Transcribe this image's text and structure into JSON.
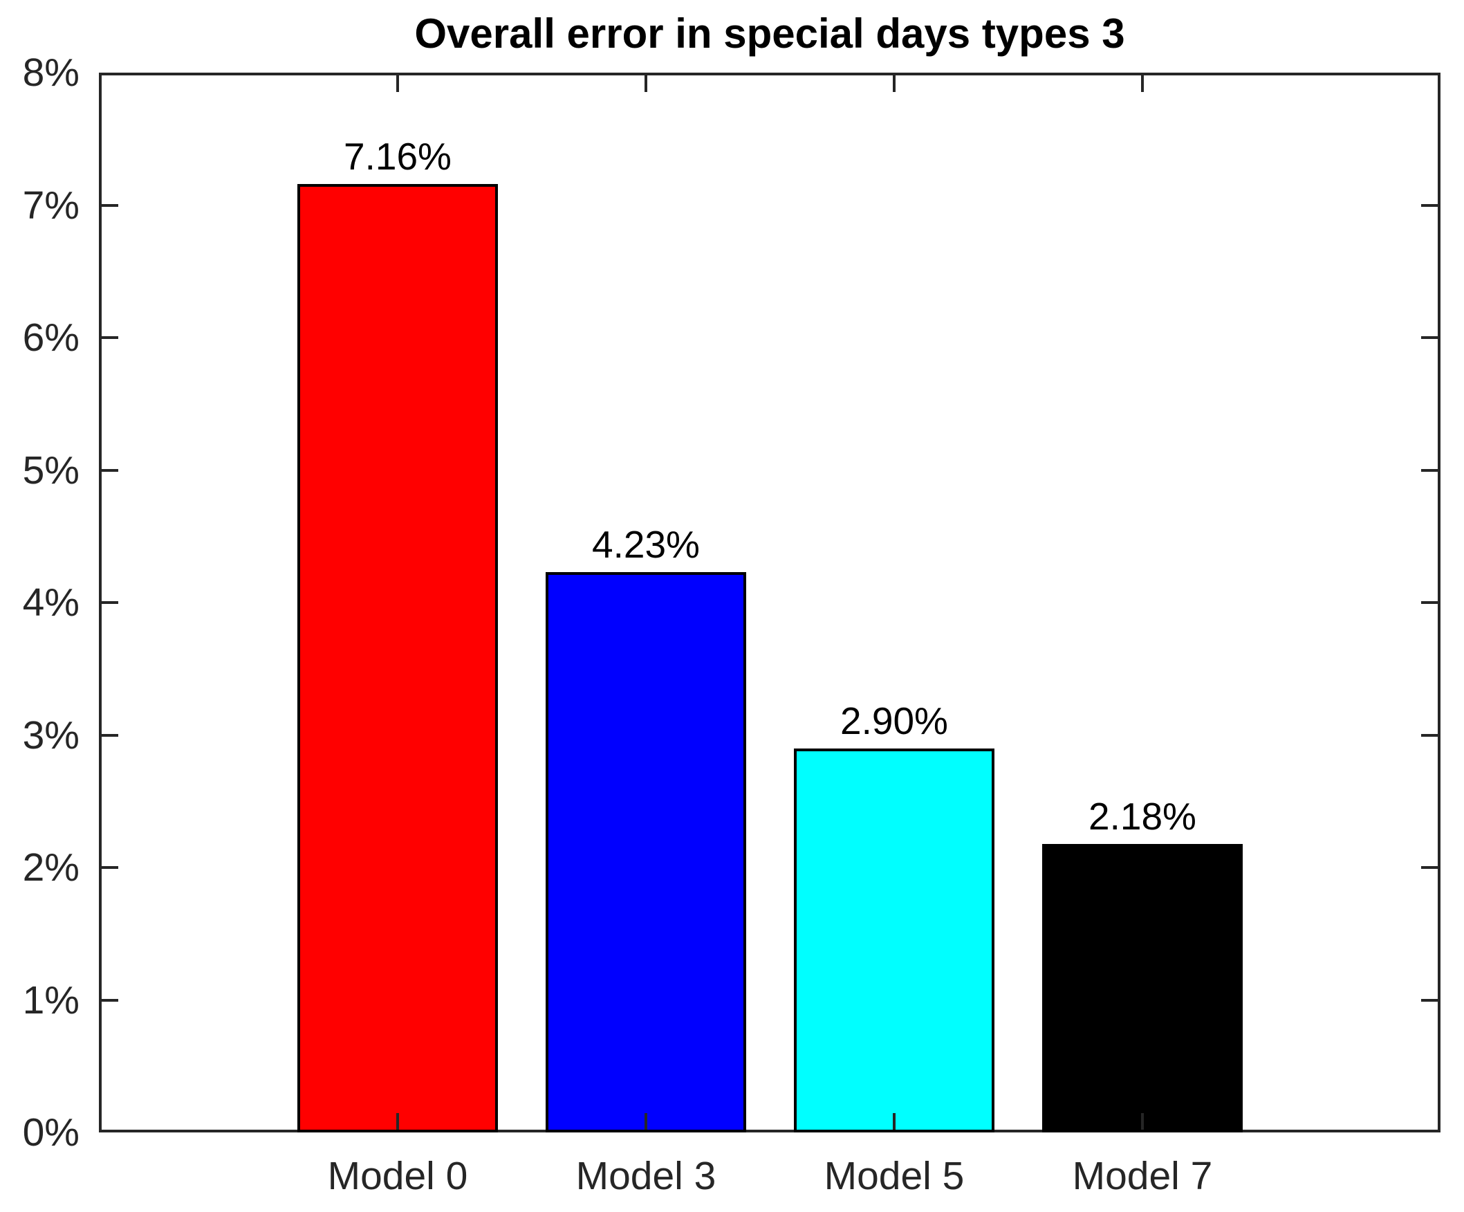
{
  "figure": {
    "background_color": "#ffffff",
    "axis_color": "#262626",
    "text_color": "#000000"
  },
  "chart_data": {
    "type": "bar",
    "title": "Overall error in special days types 3",
    "categories": [
      "Model 0",
      "Model 3",
      "Model 5",
      "Model 7"
    ],
    "values": [
      7.16,
      4.23,
      2.9,
      2.18
    ],
    "value_labels": [
      "7.16%",
      "4.23%",
      "2.90%",
      "2.18%"
    ],
    "bar_colors": [
      "#ff0000",
      "#0000ff",
      "#00ffff",
      "#000000"
    ],
    "bar_edge_color": "#000000",
    "xlabel": "",
    "ylabel": "",
    "ylim": [
      0,
      8
    ],
    "ytick_values": [
      0,
      1,
      2,
      3,
      4,
      5,
      6,
      7,
      8
    ],
    "ytick_labels": [
      "0%",
      "1%",
      "2%",
      "3%",
      "4%",
      "5%",
      "6%",
      "7%",
      "8%"
    ],
    "grid": false,
    "legend": null,
    "box": true,
    "tick_direction": "in"
  }
}
